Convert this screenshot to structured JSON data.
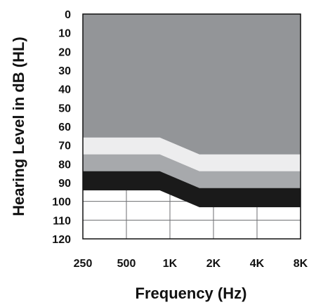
{
  "chart_data": {
    "type": "area",
    "title": "",
    "xlabel": "Frequency (Hz)",
    "ylabel": "Hearing Level in dB (HL)",
    "x_tick_labels": [
      "250",
      "500",
      "1K",
      "2K",
      "4K",
      "8K"
    ],
    "x_scale": "log2",
    "x_values": [
      250,
      500,
      1000,
      2000,
      4000,
      8000
    ],
    "y_tick_labels": [
      "0",
      "10",
      "20",
      "30",
      "40",
      "50",
      "60",
      "70",
      "80",
      "90",
      "100",
      "110",
      "120"
    ],
    "ylim": [
      0,
      120
    ],
    "y_inverted": true,
    "grid": true,
    "bands": [
      {
        "color": "#939598",
        "points": [
          [
            250,
            0
          ],
          [
            8000,
            0
          ],
          [
            8000,
            75
          ],
          [
            1600,
            75
          ],
          [
            850,
            66
          ],
          [
            250,
            66
          ]
        ]
      },
      {
        "color": "#ededee",
        "points": [
          [
            250,
            66
          ],
          [
            850,
            66
          ],
          [
            1600,
            75
          ],
          [
            8000,
            75
          ],
          [
            8000,
            84
          ],
          [
            1600,
            84
          ],
          [
            850,
            75
          ],
          [
            250,
            75
          ]
        ]
      },
      {
        "color": "#a7a9ac",
        "points": [
          [
            250,
            75
          ],
          [
            850,
            75
          ],
          [
            1600,
            84
          ],
          [
            8000,
            84
          ],
          [
            8000,
            93
          ],
          [
            1600,
            93
          ],
          [
            850,
            84
          ],
          [
            250,
            84
          ]
        ]
      },
      {
        "color": "#1a1a1a",
        "points": [
          [
            250,
            84
          ],
          [
            850,
            84
          ],
          [
            1600,
            93
          ],
          [
            8000,
            93
          ],
          [
            8000,
            103
          ],
          [
            1600,
            103
          ],
          [
            850,
            94
          ],
          [
            250,
            94
          ]
        ]
      }
    ]
  }
}
